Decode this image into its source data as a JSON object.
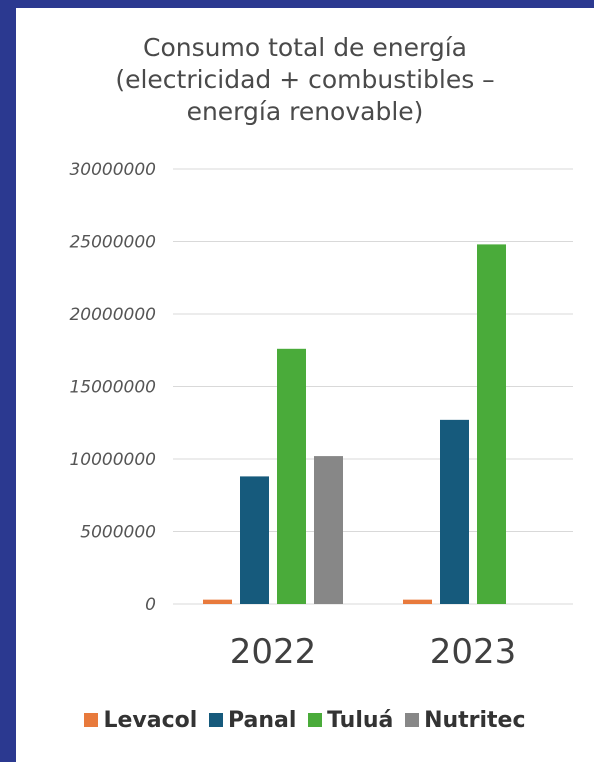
{
  "chart_data": {
    "type": "bar",
    "title_lines": [
      "Consumo total de energía",
      "(electricidad + combustibles –",
      "energía renovable)"
    ],
    "categories": [
      "2022",
      "2023"
    ],
    "series": [
      {
        "name": "Levacol",
        "color": "#e87a3c",
        "values": [
          300000,
          300000
        ]
      },
      {
        "name": "Panal",
        "color": "#165a7c",
        "values": [
          8800000,
          12700000
        ]
      },
      {
        "name": "Tuluá",
        "color": "#4aab3a",
        "values": [
          17600000,
          24800000
        ]
      },
      {
        "name": "Nutritec",
        "color": "#878787",
        "values": [
          10200000,
          0
        ]
      }
    ],
    "y_ticks": [
      "0",
      "5000000",
      "10000000",
      "15000000",
      "20000000",
      "25000000",
      "30000000"
    ],
    "ylim": [
      0,
      30000000
    ],
    "grid": true,
    "legend_position": "bottom"
  }
}
